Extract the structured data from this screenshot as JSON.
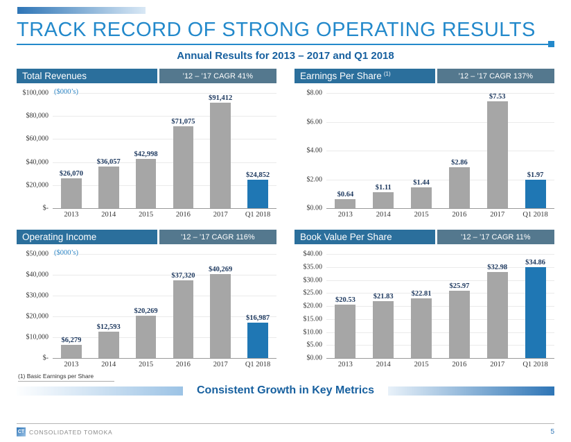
{
  "slide": {
    "title": "TRACK RECORD OF STRONG OPERATING RESULTS",
    "subtitle": "Annual Results for 2013 – 2017 and Q1 2018",
    "footnote": "(1) Basic Earnings per Share",
    "bottom_message": "Consistent Growth in Key Metrics",
    "footer_brand": "CONSOLIDATED TOMOKA",
    "logo_text": "CT",
    "page_number": "5"
  },
  "colors": {
    "title_blue": "#2389CB",
    "subtitle_blue": "#17609F",
    "header_bar_title": "#2B6F9C",
    "header_bar_badge": "#54788E",
    "bar_gray": "#A6A6A6",
    "bar_blue": "#1F77B4",
    "value_label": "#1F3A60"
  },
  "chart_data": [
    {
      "type": "bar",
      "title": "Total Revenues",
      "title_sup": "",
      "badge": "’12 – ’17 CAGR 41%",
      "unit_label": "($000’s)",
      "categories": [
        "2013",
        "2014",
        "2015",
        "2016",
        "2017",
        "Q1 2018"
      ],
      "values": [
        26070,
        36057,
        42998,
        71075,
        91412,
        24852
      ],
      "labels": [
        "$26,070",
        "$36,057",
        "$42,998",
        "$71,075",
        "$91,412",
        "$24,852"
      ],
      "ylim": [
        0,
        100000
      ],
      "ytick_labels": [
        "$100,000",
        "$80,000",
        "$60,000",
        "$40,000",
        "$20,000",
        "$-"
      ],
      "highlight_last": true,
      "legend": "none",
      "grid": true
    },
    {
      "type": "bar",
      "title": "Earnings Per Share",
      "title_sup": "(1)",
      "badge": "’12 – ’17 CAGR 137%",
      "unit_label": "",
      "categories": [
        "2013",
        "2014",
        "2015",
        "2016",
        "2017",
        "Q1 2018"
      ],
      "values": [
        0.64,
        1.11,
        1.44,
        2.86,
        7.53,
        1.97
      ],
      "labels": [
        "$0.64",
        "$1.11",
        "$1.44",
        "$2.86",
        "$7.53",
        "$1.97"
      ],
      "ylim": [
        0,
        8
      ],
      "ytick_labels": [
        "$8.00",
        "$6.00",
        "$4.00",
        "$2.00",
        "$0.00"
      ],
      "highlight_last": true,
      "legend": "none",
      "grid": true
    },
    {
      "type": "bar",
      "title": "Operating Income",
      "title_sup": "",
      "badge": "’12 – ’17 CAGR 116%",
      "unit_label": "($000’s)",
      "categories": [
        "2013",
        "2014",
        "2015",
        "2016",
        "2017",
        "Q1 2018"
      ],
      "values": [
        6279,
        12593,
        20269,
        37320,
        40269,
        16987
      ],
      "labels": [
        "$6,279",
        "$12,593",
        "$20,269",
        "$37,320",
        "$40,269",
        "$16,987"
      ],
      "ylim": [
        0,
        50000
      ],
      "ytick_labels": [
        "$50,000",
        "$40,000",
        "$30,000",
        "$20,000",
        "$10,000",
        "$-"
      ],
      "highlight_last": true,
      "legend": "none",
      "grid": true
    },
    {
      "type": "bar",
      "title": "Book Value Per Share",
      "title_sup": "",
      "badge": "’12 – ’17 CAGR 11%",
      "unit_label": "",
      "categories": [
        "2013",
        "2014",
        "2015",
        "2016",
        "2017",
        "Q1 2018"
      ],
      "values": [
        20.53,
        21.83,
        22.81,
        25.97,
        32.98,
        34.86
      ],
      "labels": [
        "$20.53",
        "$21.83",
        "$22.81",
        "$25.97",
        "$32.98",
        "$34.86"
      ],
      "ylim": [
        0,
        40
      ],
      "ytick_labels": [
        "$40.00",
        "$35.00",
        "$30.00",
        "$25.00",
        "$20.00",
        "$15.00",
        "$10.00",
        "$5.00",
        "$0.00"
      ],
      "highlight_last": true,
      "legend": "none",
      "grid": true
    }
  ]
}
